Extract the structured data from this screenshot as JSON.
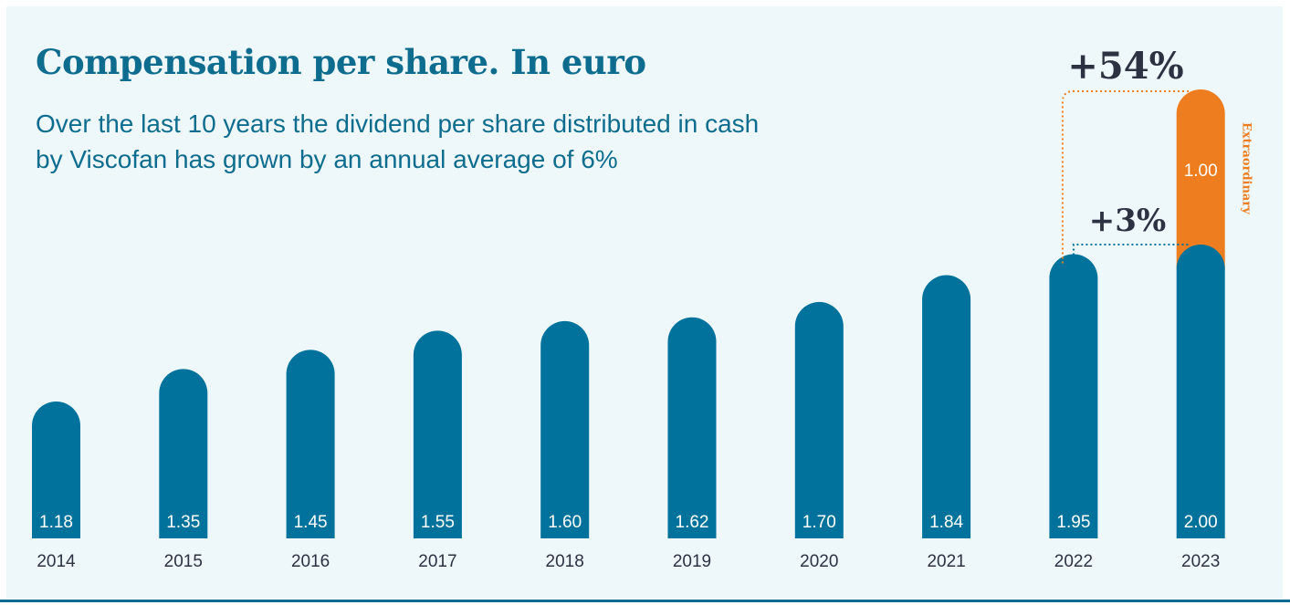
{
  "title": "Compensation per share. In euro",
  "subtitle": "Over the last 10 years the dividend per share distributed in cash by Viscofan has grown by an annual average of 6%",
  "colors": {
    "bar": "#00729b",
    "extraordinary": "#ee7d1f",
    "title": "#0e6d8f",
    "background": "#eef8fb",
    "dark_text": "#2c3242"
  },
  "chart_data": {
    "type": "bar",
    "stacked": true,
    "categories": [
      "2014",
      "2015",
      "2016",
      "2017",
      "2018",
      "2019",
      "2020",
      "2021",
      "2022",
      "2023"
    ],
    "series": [
      {
        "values": [
          1.18,
          1.35,
          1.45,
          1.55,
          1.6,
          1.62,
          1.7,
          1.84,
          1.95,
          2.0
        ]
      },
      {
        "name": "Extraordinary",
        "values": [
          null,
          null,
          null,
          null,
          null,
          null,
          null,
          null,
          null,
          1.0
        ]
      }
    ],
    "value_labels": [
      "1.18",
      "1.35",
      "1.45",
      "1.55",
      "1.60",
      "1.62",
      "1.70",
      "1.84",
      "1.95",
      "2.00"
    ],
    "extraordinary_label": "1.00",
    "annotations": [
      {
        "text": "+3%",
        "from": "2022",
        "to": "2023"
      },
      {
        "text": "+54%",
        "from": "2022",
        "to": "2023 (incl. extraordinary)"
      }
    ],
    "xlabel": "",
    "ylabel": "",
    "grid": false,
    "legend": "none"
  }
}
